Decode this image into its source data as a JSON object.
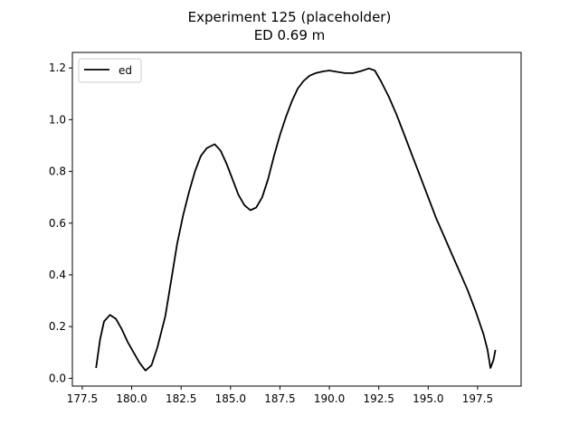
{
  "chart_data": {
    "type": "line",
    "title": "Experiment 125 (placeholder)",
    "subtitle": "ED 0.69 m",
    "xlabel": "",
    "ylabel": "",
    "xlim": [
      177.0,
      199.7
    ],
    "ylim": [
      -0.03,
      1.26
    ],
    "xticks": [
      177.5,
      180.0,
      182.5,
      185.0,
      187.5,
      190.0,
      192.5,
      195.0,
      197.5
    ],
    "xtick_labels": [
      "177.5",
      "180.0",
      "182.5",
      "185.0",
      "187.5",
      "190.0",
      "192.5",
      "195.0",
      "197.5"
    ],
    "yticks": [
      0.0,
      0.2,
      0.4,
      0.6,
      0.8,
      1.0,
      1.2
    ],
    "ytick_labels": [
      "0.0",
      "0.2",
      "0.4",
      "0.6",
      "0.8",
      "1.0",
      "1.2"
    ],
    "grid": false,
    "legend": {
      "position": "top-left",
      "entries": [
        "ed"
      ]
    },
    "series": [
      {
        "name": "ed",
        "color": "#000000",
        "points": [
          [
            178.2,
            0.04
          ],
          [
            178.4,
            0.15
          ],
          [
            178.6,
            0.22
          ],
          [
            178.9,
            0.245
          ],
          [
            179.2,
            0.23
          ],
          [
            179.5,
            0.19
          ],
          [
            179.8,
            0.14
          ],
          [
            180.1,
            0.1
          ],
          [
            180.4,
            0.06
          ],
          [
            180.7,
            0.03
          ],
          [
            181.0,
            0.05
          ],
          [
            181.3,
            0.12
          ],
          [
            181.7,
            0.24
          ],
          [
            182.0,
            0.38
          ],
          [
            182.3,
            0.52
          ],
          [
            182.6,
            0.63
          ],
          [
            182.9,
            0.72
          ],
          [
            183.2,
            0.8
          ],
          [
            183.5,
            0.86
          ],
          [
            183.8,
            0.89
          ],
          [
            184.2,
            0.905
          ],
          [
            184.5,
            0.88
          ],
          [
            184.8,
            0.83
          ],
          [
            185.1,
            0.77
          ],
          [
            185.4,
            0.71
          ],
          [
            185.7,
            0.67
          ],
          [
            186.0,
            0.65
          ],
          [
            186.3,
            0.66
          ],
          [
            186.6,
            0.7
          ],
          [
            186.9,
            0.77
          ],
          [
            187.2,
            0.86
          ],
          [
            187.5,
            0.94
          ],
          [
            187.8,
            1.01
          ],
          [
            188.1,
            1.07
          ],
          [
            188.4,
            1.12
          ],
          [
            188.7,
            1.15
          ],
          [
            189.0,
            1.17
          ],
          [
            189.3,
            1.18
          ],
          [
            189.7,
            1.187
          ],
          [
            190.0,
            1.19
          ],
          [
            190.4,
            1.185
          ],
          [
            190.8,
            1.18
          ],
          [
            191.2,
            1.18
          ],
          [
            191.6,
            1.188
          ],
          [
            192.0,
            1.198
          ],
          [
            192.3,
            1.19
          ],
          [
            192.6,
            1.15
          ],
          [
            193.0,
            1.09
          ],
          [
            193.4,
            1.02
          ],
          [
            193.8,
            0.94
          ],
          [
            194.2,
            0.86
          ],
          [
            194.6,
            0.78
          ],
          [
            195.0,
            0.7
          ],
          [
            195.4,
            0.62
          ],
          [
            195.8,
            0.55
          ],
          [
            196.2,
            0.48
          ],
          [
            196.6,
            0.41
          ],
          [
            197.0,
            0.34
          ],
          [
            197.4,
            0.26
          ],
          [
            197.8,
            0.17
          ],
          [
            198.0,
            0.11
          ],
          [
            198.15,
            0.04
          ],
          [
            198.3,
            0.07
          ],
          [
            198.4,
            0.11
          ]
        ]
      }
    ]
  }
}
